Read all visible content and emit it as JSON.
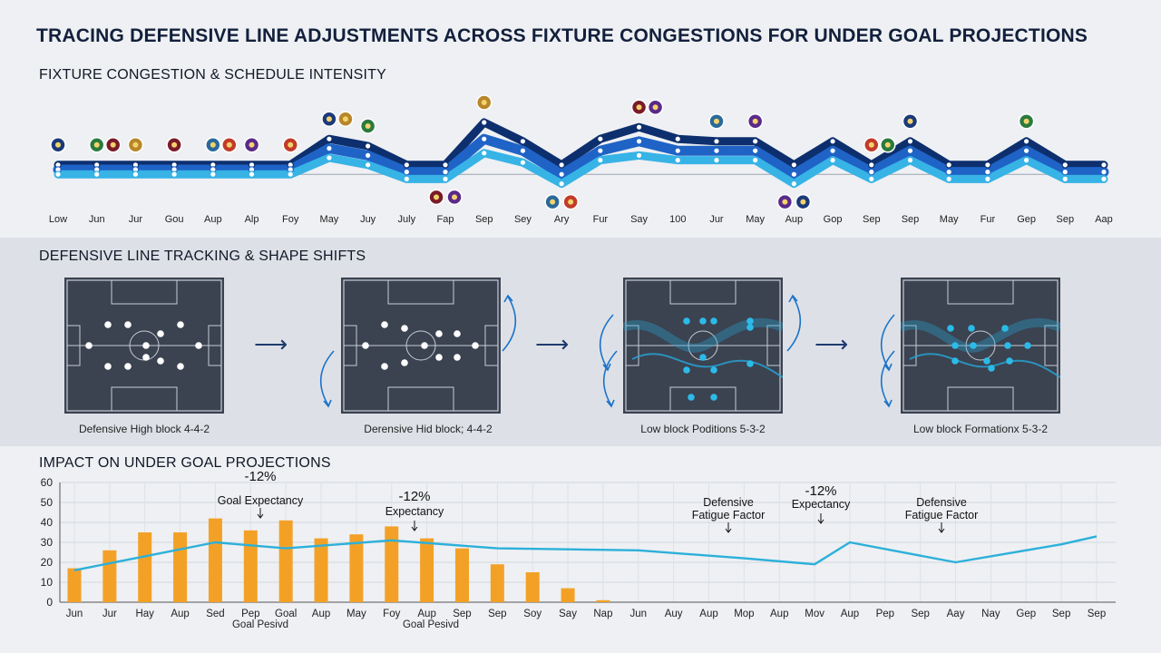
{
  "title": "TRACING DEFENSIVE LINE ADJUSTMENTS ACROSS FIXTURE CONGESTIONS FOR UNDER GOAL PROJECTIONS",
  "sections": {
    "congestion": "FIXTURE CONGESTION & SCHEDULE INTENSITY",
    "tracking": "DEFENSIVE LINE TRACKING & SHAPE SHIFTS",
    "impact": "IMPACT ON UNDER GOAL PROJECTIONS"
  },
  "colors": {
    "navy": "#0d2f6e",
    "blue": "#1f63c6",
    "sky": "#37b3e6",
    "orange": "#f3a126",
    "line": "#2cb0da"
  },
  "chart_data": [
    {
      "type": "line",
      "title": "FIXTURE CONGESTION & SCHEDULE INTENSITY",
      "categories": [
        "Low",
        "Jun",
        "Jur",
        "Gou",
        "Aup",
        "Alp",
        "Foy",
        "May",
        "Juy",
        "July",
        "Fap",
        "Sep",
        "Sey",
        "Ary",
        "Fur",
        "Say",
        "100",
        "Jur",
        "May",
        "Aup",
        "Gop",
        "Sep",
        "Sep",
        "May",
        "Fur",
        "Gep",
        "Sep",
        "Aap"
      ],
      "series": [
        {
          "values": [
            7,
            7,
            7,
            7,
            7,
            7,
            7,
            18,
            15,
            7,
            7,
            25,
            17,
            7,
            18,
            23,
            18,
            17,
            17,
            7,
            17,
            7,
            17,
            7,
            7,
            17,
            7,
            7
          ]
        },
        {
          "values": [
            5,
            5,
            5,
            5,
            5,
            5,
            5,
            14,
            11,
            4,
            4,
            18,
            13,
            3,
            13,
            17,
            13,
            13,
            13,
            3,
            13,
            4,
            13,
            4,
            4,
            13,
            4,
            4
          ]
        },
        {
          "values": [
            3,
            3,
            3,
            3,
            3,
            3,
            3,
            10,
            7,
            1,
            1,
            12,
            8,
            -1,
            9,
            11,
            9,
            9,
            9,
            -1,
            9,
            1,
            9,
            1,
            1,
            9,
            1,
            1
          ]
        }
      ],
      "ylim": [
        -10,
        40
      ],
      "badges_above": [
        0,
        1,
        2,
        3,
        4,
        5,
        6,
        7,
        8,
        11,
        15,
        17,
        18,
        21,
        22,
        25
      ],
      "badges_below": [
        10,
        13,
        19
      ]
    },
    {
      "type": "bar",
      "title": "IMPACT ON UNDER GOAL PROJECTIONS",
      "categories": [
        "Jun",
        "Jur",
        "Hay",
        "Aup",
        "Sed",
        "Pep",
        "Goal",
        "Aup",
        "May",
        "Foy",
        "Aup",
        "Sep",
        "Sep",
        "Soy",
        "Say",
        "Nap",
        "Jun",
        "Auy",
        "Aup",
        "Mop",
        "Aup",
        "Mov",
        "Aup",
        "Pep",
        "Sep",
        "Aay",
        "Nay",
        "Gep",
        "Sep",
        "Sep"
      ],
      "bar_values": [
        17,
        26,
        35,
        35,
        42,
        36,
        41,
        32,
        34,
        38,
        32,
        27,
        19,
        15,
        7,
        1
      ],
      "line_x": [
        0,
        4,
        6,
        9,
        12,
        16,
        19,
        21,
        22,
        25,
        28,
        29
      ],
      "line_values": [
        16,
        30,
        27,
        31,
        27,
        26,
        22,
        19,
        30,
        20,
        29,
        33
      ],
      "ylim": [
        0,
        60
      ],
      "yticks": [
        0,
        10,
        20,
        30,
        40,
        50,
        60
      ],
      "annotations": [
        {
          "value": "-12%",
          "label": "Goal Expectancy"
        },
        {
          "value": "-12%",
          "label": "Expectancy"
        },
        {
          "value": "",
          "label": "Defensive Fatigue Factor"
        },
        {
          "value": "-12%",
          "label": "Expectancy"
        },
        {
          "value": "",
          "label": "Defensive Fatigue Factor"
        }
      ],
      "sub_labels": [
        "Goal Pesivd",
        "Goal Pesivd"
      ]
    }
  ],
  "formations": [
    {
      "caption": "Defensive High block 4-4-2",
      "style": "white",
      "arrows": false
    },
    {
      "caption": "Derensive Hid block; 4-4-2",
      "style": "white",
      "arrows": true
    },
    {
      "caption": "Low block Poditions 5-3-2",
      "style": "blue",
      "arrows": true
    },
    {
      "caption": "Low block Formationx 5-3-2",
      "style": "blue",
      "arrows": true
    }
  ]
}
